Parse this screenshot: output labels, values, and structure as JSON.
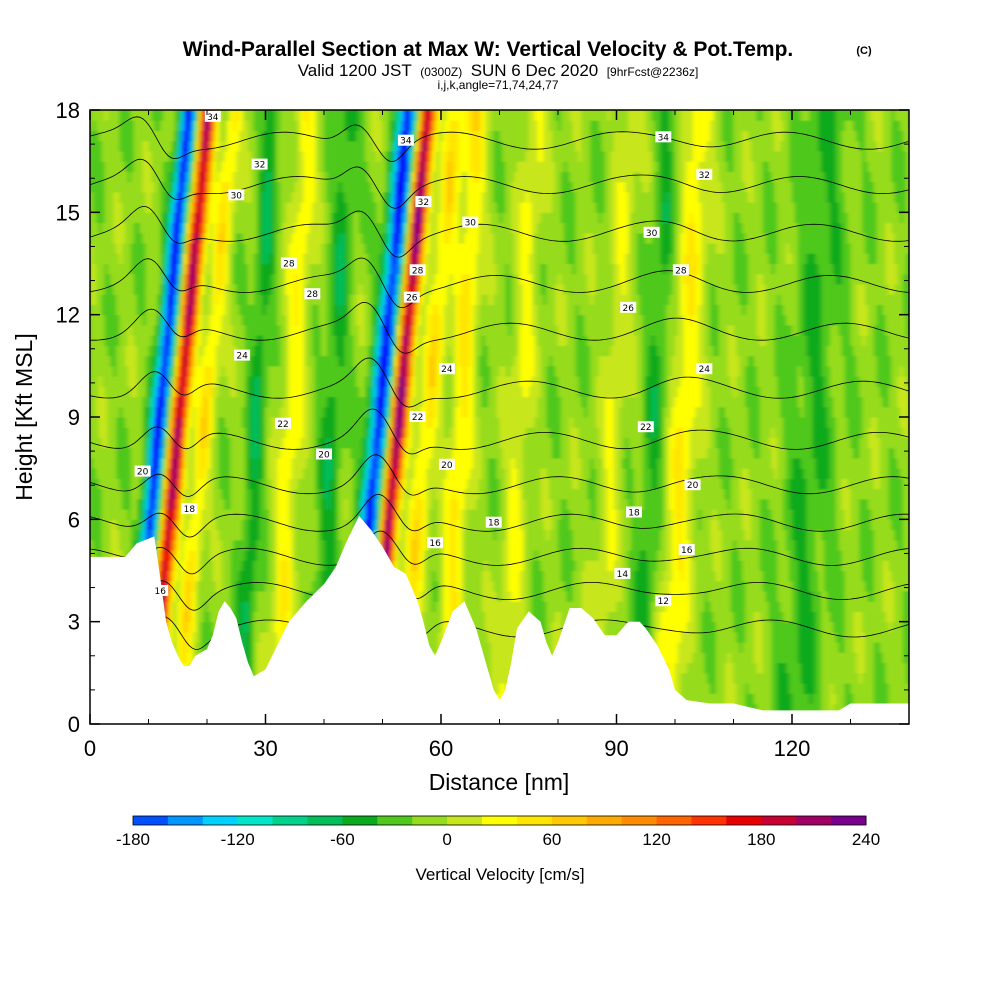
{
  "chart_data": {
    "type": "heatmap",
    "title": "Wind-Parallel Section at Max W: Vertical Velocity & Pot.Temp.",
    "title_mark": "(C)",
    "subtitle_parts": [
      "Valid 1200 JST",
      "(0300Z)",
      "SUN 6 Dec 2020",
      "[9hrFcst@2236z]"
    ],
    "subtitle2": "i,j,k,angle=71,74,24,77",
    "xlabel": "Distance [nm]",
    "ylabel": "Height [Kft MSL]",
    "xlim": [
      0,
      140
    ],
    "ylim": [
      0,
      18
    ],
    "x_ticks": [
      "0",
      "30",
      "60",
      "90",
      "120"
    ],
    "y_ticks": [
      "0",
      "3",
      "6",
      "9",
      "12",
      "15",
      "18"
    ],
    "colorbar": {
      "label": "Vertical Velocity [cm/s]",
      "min": -180,
      "max": 240,
      "step": 20,
      "tick_labels": [
        "-180",
        "-120",
        "-60",
        "0",
        "60",
        "120",
        "180",
        "240"
      ],
      "colors": [
        "#0000ff",
        "#0050ff",
        "#0096ff",
        "#00d2ff",
        "#00e6c8",
        "#00d28c",
        "#00be5a",
        "#0aaa1e",
        "#50c81e",
        "#96dc1e",
        "#c8e61e",
        "#ffff00",
        "#ffe600",
        "#ffc800",
        "#ffaa00",
        "#ff8c00",
        "#ff6400",
        "#ff3200",
        "#e60000",
        "#c80032",
        "#a00064",
        "#78008c",
        "#5a00a0"
      ]
    },
    "terrain": [
      [
        0,
        4.9
      ],
      [
        6,
        4.9
      ],
      [
        8,
        5.3
      ],
      [
        11,
        5.5
      ],
      [
        12,
        4.3
      ],
      [
        13,
        3.0
      ],
      [
        14,
        2.4
      ],
      [
        15,
        2.0
      ],
      [
        16,
        1.7
      ],
      [
        17,
        1.7
      ],
      [
        18,
        2.0
      ],
      [
        20,
        2.2
      ],
      [
        21,
        2.6
      ],
      [
        22,
        3.3
      ],
      [
        23,
        3.6
      ],
      [
        24,
        3.4
      ],
      [
        25,
        3.1
      ],
      [
        26,
        2.4
      ],
      [
        27,
        1.8
      ],
      [
        28,
        1.4
      ],
      [
        30,
        1.6
      ],
      [
        32,
        2.3
      ],
      [
        34,
        3.0
      ],
      [
        37,
        3.6
      ],
      [
        40,
        4.1
      ],
      [
        42,
        4.6
      ],
      [
        44,
        5.4
      ],
      [
        46,
        6.1
      ],
      [
        48,
        5.7
      ],
      [
        50,
        5.2
      ],
      [
        52,
        4.6
      ],
      [
        54,
        4.4
      ],
      [
        56,
        3.6
      ],
      [
        57,
        3.0
      ],
      [
        58,
        2.3
      ],
      [
        59,
        2.0
      ],
      [
        60,
        2.4
      ],
      [
        62,
        3.3
      ],
      [
        64,
        3.6
      ],
      [
        66,
        2.8
      ],
      [
        68,
        1.6
      ],
      [
        69,
        1.0
      ],
      [
        70,
        0.7
      ],
      [
        71,
        1.0
      ],
      [
        72,
        1.8
      ],
      [
        73,
        2.8
      ],
      [
        75,
        3.3
      ],
      [
        77,
        3.0
      ],
      [
        78,
        2.4
      ],
      [
        79,
        2.0
      ],
      [
        80,
        2.4
      ],
      [
        82,
        3.4
      ],
      [
        84,
        3.4
      ],
      [
        86,
        3.1
      ],
      [
        88,
        2.6
      ],
      [
        90,
        2.6
      ],
      [
        92,
        3.0
      ],
      [
        94,
        3.0
      ],
      [
        95,
        2.8
      ],
      [
        97,
        2.3
      ],
      [
        99,
        1.6
      ],
      [
        100,
        1.0
      ],
      [
        102,
        0.7
      ],
      [
        106,
        0.6
      ],
      [
        110,
        0.6
      ],
      [
        115,
        0.4
      ],
      [
        120,
        0.4
      ],
      [
        128,
        0.4
      ],
      [
        130,
        0.6
      ],
      [
        138,
        0.6
      ],
      [
        140,
        0.6
      ]
    ],
    "theta_contours": [
      12,
      14,
      16,
      18,
      20,
      22,
      24,
      26,
      28,
      30,
      32,
      34
    ],
    "contour_labels": [
      {
        "text": "34",
        "x": 21,
        "y": 17.8
      },
      {
        "text": "32",
        "x": 29,
        "y": 16.4
      },
      {
        "text": "30",
        "x": 25,
        "y": 15.5
      },
      {
        "text": "28",
        "x": 34,
        "y": 13.5
      },
      {
        "text": "28",
        "x": 38,
        "y": 12.6
      },
      {
        "text": "24",
        "x": 26,
        "y": 10.8
      },
      {
        "text": "22",
        "x": 33,
        "y": 8.8
      },
      {
        "text": "20",
        "x": 40,
        "y": 7.9
      },
      {
        "text": "20",
        "x": 9,
        "y": 7.4
      },
      {
        "text": "18",
        "x": 17,
        "y": 6.3
      },
      {
        "text": "16",
        "x": 12,
        "y": 3.9
      },
      {
        "text": "34",
        "x": 54,
        "y": 17.1
      },
      {
        "text": "32",
        "x": 57,
        "y": 15.3
      },
      {
        "text": "30",
        "x": 65,
        "y": 14.7
      },
      {
        "text": "28",
        "x": 56,
        "y": 13.3
      },
      {
        "text": "26",
        "x": 55,
        "y": 12.5
      },
      {
        "text": "24",
        "x": 61,
        "y": 10.4
      },
      {
        "text": "22",
        "x": 56,
        "y": 9.0
      },
      {
        "text": "20",
        "x": 61,
        "y": 7.6
      },
      {
        "text": "18",
        "x": 69,
        "y": 5.9
      },
      {
        "text": "16",
        "x": 59,
        "y": 5.3
      },
      {
        "text": "34",
        "x": 98,
        "y": 17.2
      },
      {
        "text": "32",
        "x": 105,
        "y": 16.1
      },
      {
        "text": "30",
        "x": 96,
        "y": 14.4
      },
      {
        "text": "28",
        "x": 101,
        "y": 13.3
      },
      {
        "text": "26",
        "x": 92,
        "y": 12.2
      },
      {
        "text": "24",
        "x": 105,
        "y": 10.4
      },
      {
        "text": "22",
        "x": 95,
        "y": 8.7
      },
      {
        "text": "20",
        "x": 103,
        "y": 7.0
      },
      {
        "text": "18",
        "x": 93,
        "y": 6.2
      },
      {
        "text": "16",
        "x": 102,
        "y": 5.1
      },
      {
        "text": "14",
        "x": 91,
        "y": 4.4
      },
      {
        "text": "12",
        "x": 98,
        "y": 3.6
      }
    ]
  }
}
